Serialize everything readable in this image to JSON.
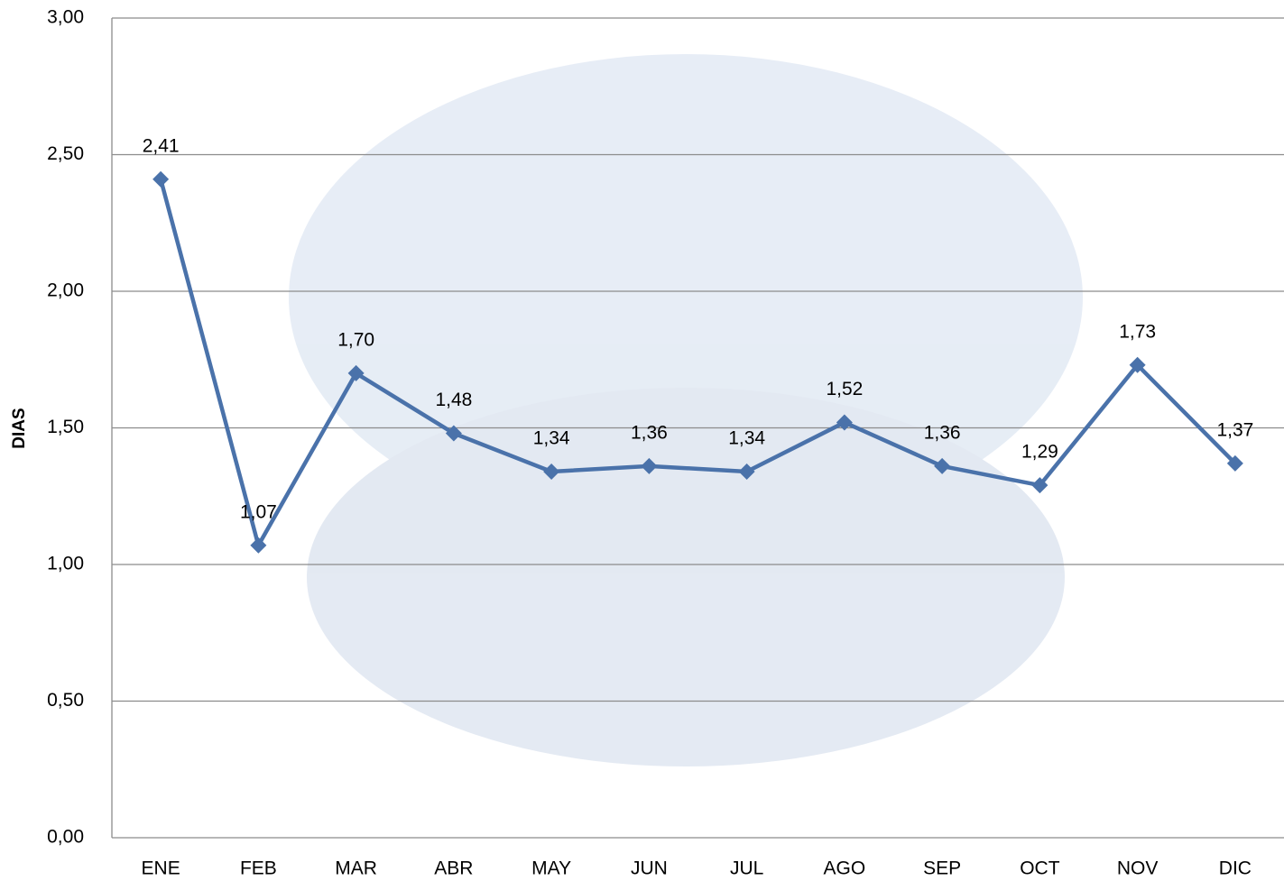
{
  "chart_data": {
    "type": "line",
    "y_label": "DIAS",
    "categories": [
      "ENE",
      "FEB",
      "MAR",
      "ABR",
      "MAY",
      "JUN",
      "JUL",
      "AGO",
      "SEP",
      "OCT",
      "NOV",
      "DIC"
    ],
    "values": [
      2.41,
      1.07,
      1.7,
      1.48,
      1.34,
      1.36,
      1.34,
      1.52,
      1.36,
      1.29,
      1.73,
      1.37
    ],
    "value_labels": [
      "2,41",
      "1,07",
      "1,70",
      "1,48",
      "1,34",
      "1,36",
      "1,34",
      "1,52",
      "1,36",
      "1,29",
      "1,73",
      "1,37"
    ],
    "color": "#4a72aa",
    "ylim": [
      0,
      3
    ],
    "yticks": [
      {
        "value": 0,
        "label": "0,00"
      },
      {
        "value": 0.5,
        "label": "0,50"
      },
      {
        "value": 1,
        "label": "1,00"
      },
      {
        "value": 1.5,
        "label": "1,50"
      },
      {
        "value": 2,
        "label": "2,00"
      },
      {
        "value": 2.5,
        "label": "2,50"
      },
      {
        "value": 3,
        "label": "3,00"
      }
    ],
    "grid": true
  }
}
